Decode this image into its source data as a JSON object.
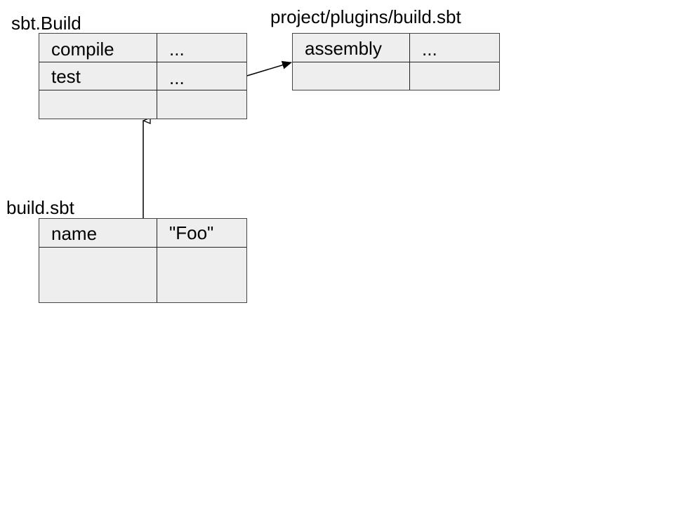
{
  "diagram": {
    "sbt_build": {
      "title": "sbt.Build",
      "rows": [
        {
          "key": "compile",
          "value": "..."
        },
        {
          "key": "test",
          "value": "..."
        }
      ]
    },
    "plugins_build": {
      "title": "project/plugins/build.sbt",
      "rows": [
        {
          "key": "assembly",
          "value": "..."
        }
      ]
    },
    "build_sbt": {
      "title": "build.sbt",
      "rows": [
        {
          "key": "name",
          "value": "\"Foo\""
        }
      ]
    }
  }
}
